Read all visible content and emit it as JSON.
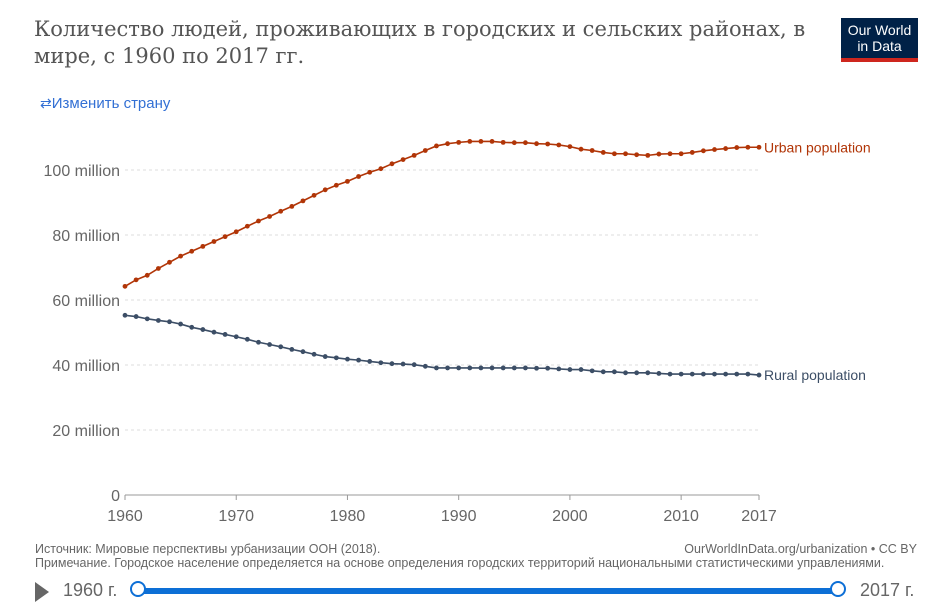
{
  "header": {
    "title": "Количество людей, проживающих в городских и сельских районах, в мире, с 1960 по 2017 гг.",
    "logo": "Our World in Data",
    "logo_line1": "Our World",
    "logo_line2": "in Data",
    "change_country": "Изменить страну",
    "change_icon": "swap-arrows-icon"
  },
  "chart_data": {
    "type": "line",
    "title": "Количество людей, проживающих в городских и сельских районах, в мире, с 1960 по 2017 гг.",
    "x": [
      1960,
      1961,
      1962,
      1963,
      1964,
      1965,
      1966,
      1967,
      1968,
      1969,
      1970,
      1971,
      1972,
      1973,
      1974,
      1975,
      1976,
      1977,
      1978,
      1979,
      1980,
      1981,
      1982,
      1983,
      1984,
      1985,
      1986,
      1987,
      1988,
      1989,
      1990,
      1991,
      1992,
      1993,
      1994,
      1995,
      1996,
      1997,
      1998,
      1999,
      2000,
      2001,
      2002,
      2003,
      2004,
      2005,
      2006,
      2007,
      2008,
      2009,
      2010,
      2011,
      2012,
      2013,
      2014,
      2015,
      2016,
      2017
    ],
    "series": [
      {
        "name": "Urban population",
        "color": "#b13507",
        "values": [
          64.2,
          66.2,
          67.6,
          69.7,
          71.6,
          73.5,
          75.0,
          76.5,
          78.0,
          79.5,
          81.0,
          82.7,
          84.3,
          85.7,
          87.3,
          88.8,
          90.5,
          92.2,
          93.9,
          95.3,
          96.5,
          98.0,
          99.3,
          100.4,
          101.9,
          103.2,
          104.5,
          106.0,
          107.4,
          108.1,
          108.5,
          108.8,
          108.8,
          108.8,
          108.5,
          108.4,
          108.4,
          108.1,
          108.0,
          107.7,
          107.2,
          106.4,
          106.0,
          105.4,
          105.0,
          105.0,
          104.7,
          104.5,
          104.9,
          105.0,
          105.0,
          105.4,
          105.9,
          106.3,
          106.6,
          106.9,
          107.0,
          107.0
        ]
      },
      {
        "name": "Rural population",
        "color": "#3c4e66",
        "values": [
          55.3,
          54.9,
          54.2,
          53.7,
          53.3,
          52.6,
          51.6,
          50.9,
          50.1,
          49.4,
          48.7,
          47.9,
          47.0,
          46.3,
          45.6,
          44.8,
          44.1,
          43.3,
          42.6,
          42.2,
          41.8,
          41.5,
          41.1,
          40.7,
          40.4,
          40.3,
          40.1,
          39.6,
          39.1,
          39.1,
          39.1,
          39.1,
          39.1,
          39.1,
          39.1,
          39.1,
          39.1,
          39.0,
          39.0,
          38.8,
          38.6,
          38.6,
          38.2,
          37.9,
          37.9,
          37.6,
          37.6,
          37.6,
          37.4,
          37.2,
          37.2,
          37.2,
          37.2,
          37.2,
          37.2,
          37.2,
          37.2,
          36.9
        ]
      }
    ],
    "unit": "million",
    "ylim": [
      0,
      110
    ],
    "yticks": [
      0,
      20,
      40,
      60,
      80,
      100
    ],
    "ytick_labels": [
      "0",
      "20 million",
      "40 million",
      "60 million",
      "80 million",
      "100 million"
    ],
    "xticks": [
      1960,
      1970,
      1980,
      1990,
      2000,
      2010,
      2017
    ],
    "xtick_labels": [
      "1960",
      "1970",
      "1980",
      "1990",
      "2000",
      "2010",
      "2017"
    ],
    "grid": true,
    "legend": "inline-right"
  },
  "footer": {
    "source": "Источник: Мировые перспективы урбанизации ООН (2018).",
    "credit": "OurWorldInData.org/urbanization • CC BY",
    "note": "Примечание. Городское население определяется на основе определения городских территорий национальными статистическими управлениями."
  },
  "timeline": {
    "start_label": "1960 г.",
    "end_label": "2017 г.",
    "play_icon": "play-icon"
  }
}
